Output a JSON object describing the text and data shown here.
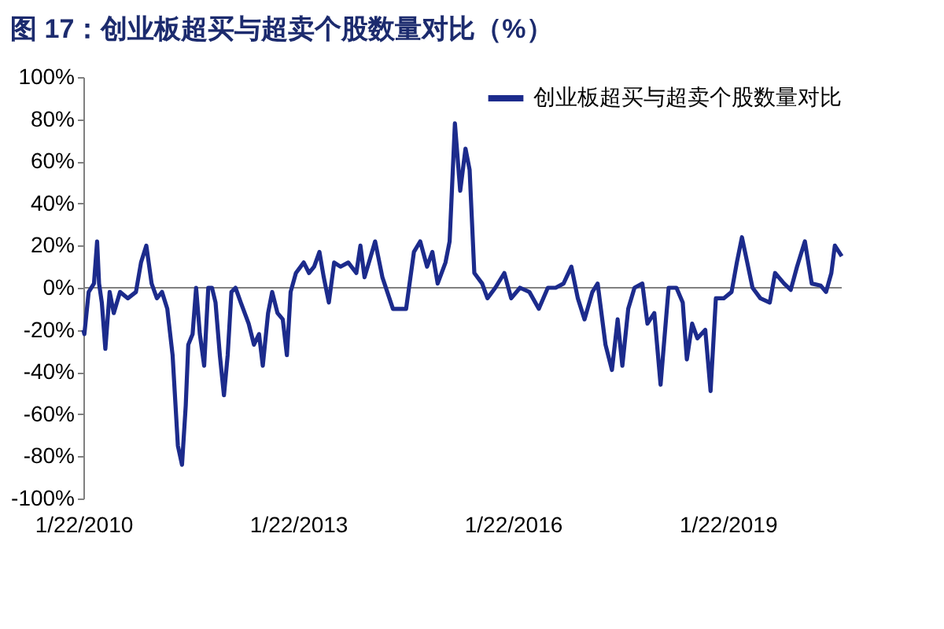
{
  "chart_data": {
    "type": "line",
    "title": "图 17：创业板超买与超卖个股数量对比（%）",
    "x": [
      "2010-01-22",
      "2010-01-27",
      "2010-02-18",
      "2010-03-17",
      "2010-04-02",
      "2010-04-12",
      "2010-04-26",
      "2010-05-14",
      "2010-06-05",
      "2010-06-26",
      "2010-07-28",
      "2010-09-06",
      "2010-10-17",
      "2010-11-12",
      "2010-12-09",
      "2011-01-05",
      "2011-02-01",
      "2011-02-27",
      "2011-03-26",
      "2011-04-22",
      "2011-05-19",
      "2011-06-09",
      "2011-06-28",
      "2011-07-11",
      "2011-08-02",
      "2011-08-20",
      "2011-09-08",
      "2011-09-30",
      "2011-10-21",
      "2011-11-09",
      "2011-11-27",
      "2011-12-19",
      "2012-01-09",
      "2012-01-28",
      "2012-02-16",
      "2012-03-08",
      "2012-04-04",
      "2012-05-14",
      "2012-06-10",
      "2012-07-06",
      "2012-07-25",
      "2012-08-21",
      "2012-09-11",
      "2012-10-08",
      "2012-11-04",
      "2012-11-25",
      "2012-12-14",
      "2013-01-10",
      "2013-02-19",
      "2013-03-18",
      "2013-04-13",
      "2013-05-10",
      "2013-06-01",
      "2013-06-27",
      "2013-07-24",
      "2013-08-25",
      "2013-10-04",
      "2013-11-14",
      "2013-12-05",
      "2013-12-26",
      "2014-01-27",
      "2014-02-18",
      "2014-03-27",
      "2014-05-20",
      "2014-07-26",
      "2014-09-04",
      "2014-10-06",
      "2014-11-10",
      "2014-12-07",
      "2015-01-03",
      "2015-02-12",
      "2015-03-05",
      "2015-04-01",
      "2015-04-28",
      "2015-05-25",
      "2015-06-15",
      "2015-07-09",
      "2015-08-18",
      "2015-09-14",
      "2015-10-24",
      "2015-12-09",
      "2016-01-13",
      "2016-02-27",
      "2016-04-15",
      "2016-06-02",
      "2016-07-18",
      "2016-08-27",
      "2016-10-06",
      "2016-11-15",
      "2016-12-18",
      "2017-01-21",
      "2017-03-02",
      "2017-03-29",
      "2017-05-08",
      "2017-06-10",
      "2017-07-09",
      "2017-08-02",
      "2017-09-01",
      "2017-10-03",
      "2017-11-12",
      "2017-12-08",
      "2018-01-12",
      "2018-02-13",
      "2018-03-26",
      "2018-05-05",
      "2018-06-06",
      "2018-06-27",
      "2018-07-24",
      "2018-08-20",
      "2018-09-29",
      "2018-10-26",
      "2018-11-22",
      "2019-01-01",
      "2019-02-10",
      "2019-03-09",
      "2019-04-04",
      "2019-05-01",
      "2019-05-28",
      "2019-07-07",
      "2019-08-24",
      "2019-09-20",
      "2019-11-05",
      "2019-12-09",
      "2020-01-10",
      "2020-02-19",
      "2020-03-25",
      "2020-05-10",
      "2020-06-06",
      "2020-07-03",
      "2020-07-21",
      "2020-08-25"
    ],
    "series": [
      {
        "name": "创业板超买与超卖个股数量对比",
        "color": "#1c2b8c",
        "values": [
          -20,
          -22,
          -2,
          2,
          22,
          2,
          -7,
          -29,
          -2,
          -12,
          -2,
          -5,
          -2,
          12,
          20,
          2,
          -5,
          -2,
          -10,
          -32,
          -75,
          -84,
          -56,
          -27,
          -22,
          0,
          -22,
          -37,
          0,
          0,
          -7,
          -32,
          -51,
          -32,
          -2,
          0,
          -7,
          -17,
          -27,
          -22,
          -37,
          -12,
          -2,
          -12,
          -15,
          -32,
          -2,
          7,
          12,
          7,
          10,
          17,
          5,
          -7,
          12,
          10,
          12,
          7,
          20,
          5,
          15,
          22,
          5,
          -10,
          -10,
          17,
          22,
          10,
          17,
          2,
          12,
          22,
          78,
          46,
          66,
          56,
          7,
          2,
          -5,
          0,
          7,
          -5,
          0,
          -2,
          -10,
          0,
          0,
          2,
          10,
          -5,
          -15,
          -2,
          2,
          -27,
          -39,
          -15,
          -37,
          -10,
          0,
          2,
          -17,
          -12,
          -46,
          0,
          0,
          -7,
          -34,
          -17,
          -24,
          -20,
          -49,
          -5,
          -5,
          -2,
          12,
          24,
          12,
          0,
          -5,
          -7,
          7,
          2,
          -1,
          10,
          22,
          2,
          1,
          -2,
          7,
          20,
          15
        ]
      }
    ],
    "xlim": [
      "2010-01-22",
      "2020-08-25"
    ],
    "xticks": [
      {
        "value": "2010-01-22",
        "label": "1/22/2010"
      },
      {
        "value": "2013-01-22",
        "label": "1/22/2013"
      },
      {
        "value": "2016-01-22",
        "label": "1/22/2016"
      },
      {
        "value": "2019-01-22",
        "label": "1/22/2019"
      }
    ],
    "ylim": [
      -100,
      100
    ],
    "yticks": [
      {
        "value": -100,
        "label": "-100%"
      },
      {
        "value": -80,
        "label": "-80%"
      },
      {
        "value": -60,
        "label": "-60%"
      },
      {
        "value": -40,
        "label": "-40%"
      },
      {
        "value": -20,
        "label": "-20%"
      },
      {
        "value": 0,
        "label": "0%"
      },
      {
        "value": 20,
        "label": "20%"
      },
      {
        "value": 40,
        "label": "40%"
      },
      {
        "value": 60,
        "label": "60%"
      },
      {
        "value": 80,
        "label": "80%"
      },
      {
        "value": 100,
        "label": "100%"
      }
    ],
    "ref_lines": [
      {
        "axis": "y",
        "value": 0,
        "color": "#808080"
      }
    ],
    "grid": false,
    "legend": "top right",
    "line_style": "solid"
  }
}
